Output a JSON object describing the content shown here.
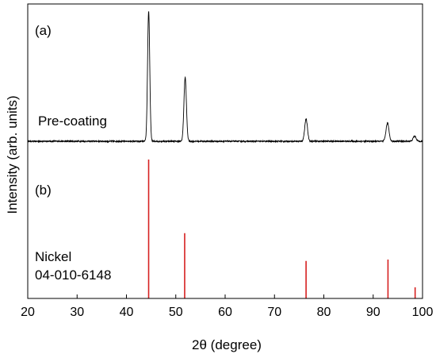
{
  "chart_data": {
    "type": "line",
    "xlabel": "2θ (degree)",
    "ylabel": "Intensity (arb. units)",
    "xlim": [
      20,
      100
    ],
    "x_ticks": [
      20,
      30,
      40,
      50,
      60,
      70,
      80,
      90,
      100
    ],
    "grid": false,
    "panels": {
      "a": {
        "label": "(a)",
        "series_label": "Pre-coating",
        "color": "#000000",
        "baseline": 0.02,
        "peaks": [
          {
            "x": 44.5,
            "height": 1.0,
            "width": 0.22
          },
          {
            "x": 51.9,
            "height": 0.49,
            "width": 0.25
          },
          {
            "x": 76.4,
            "height": 0.17,
            "width": 0.28
          },
          {
            "x": 92.9,
            "height": 0.14,
            "width": 0.3
          },
          {
            "x": 98.4,
            "height": 0.04,
            "width": 0.3
          }
        ]
      },
      "b": {
        "label": "(b)",
        "reference_name": "Nickel",
        "reference_code": "04-010-6148",
        "color": "#d62020",
        "sticks": [
          {
            "x": 44.5,
            "intensity": 100
          },
          {
            "x": 51.8,
            "intensity": 47
          },
          {
            "x": 76.4,
            "intensity": 27
          },
          {
            "x": 93.0,
            "intensity": 28
          },
          {
            "x": 98.5,
            "intensity": 8
          }
        ]
      }
    }
  }
}
